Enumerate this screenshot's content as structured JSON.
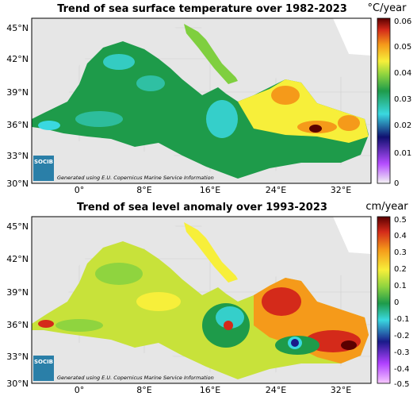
{
  "panels": [
    {
      "title": "Trend of sea surface temperature over 1982-2023",
      "unit": "°C/year",
      "lat_ticks": [
        "45°N",
        "42°N",
        "39°N",
        "36°N",
        "33°N",
        "30°N"
      ],
      "lon_ticks": [
        "0°",
        "8°E",
        "16°E",
        "24°E",
        "32°E"
      ],
      "colorbar_ticks": [
        "0.06",
        "0.05",
        "0.04",
        "0.03",
        "0.02",
        "0.01",
        "0"
      ],
      "logo": "SOCIB",
      "credit": "Generated using E.U. Copernicus Marine Service Information",
      "colors": [
        "#f2f2f2",
        "#9b30ff",
        "#1a1a8a",
        "#40e0d0",
        "#1e9b4a",
        "#7fcf3f",
        "#f7ef3a",
        "#f59a1a",
        "#d42a1a",
        "#5a0000"
      ]
    },
    {
      "title": "Trend of sea level anomaly over 1993-2023",
      "unit": "cm/year",
      "lat_ticks": [
        "45°N",
        "42°N",
        "39°N",
        "36°N",
        "33°N",
        "30°N"
      ],
      "lon_ticks": [
        "0°",
        "8°E",
        "16°E",
        "24°E",
        "32°E"
      ],
      "colorbar_ticks": [
        "0.5",
        "0.4",
        "0.3",
        "0.2",
        "0.1",
        "0",
        "-0.1",
        "-0.2",
        "-0.3",
        "-0.4",
        "-0.5"
      ],
      "logo": "SOCIB",
      "credit": "Generated using E.U. Copernicus Marine Service Information",
      "colors": [
        "#f7c8ff",
        "#b040ff",
        "#2a2aa0",
        "#40e0d0",
        "#1e9b4a",
        "#8fd43f",
        "#f7ef3a",
        "#f59a1a",
        "#d42a1a",
        "#5a0000"
      ]
    }
  ]
}
